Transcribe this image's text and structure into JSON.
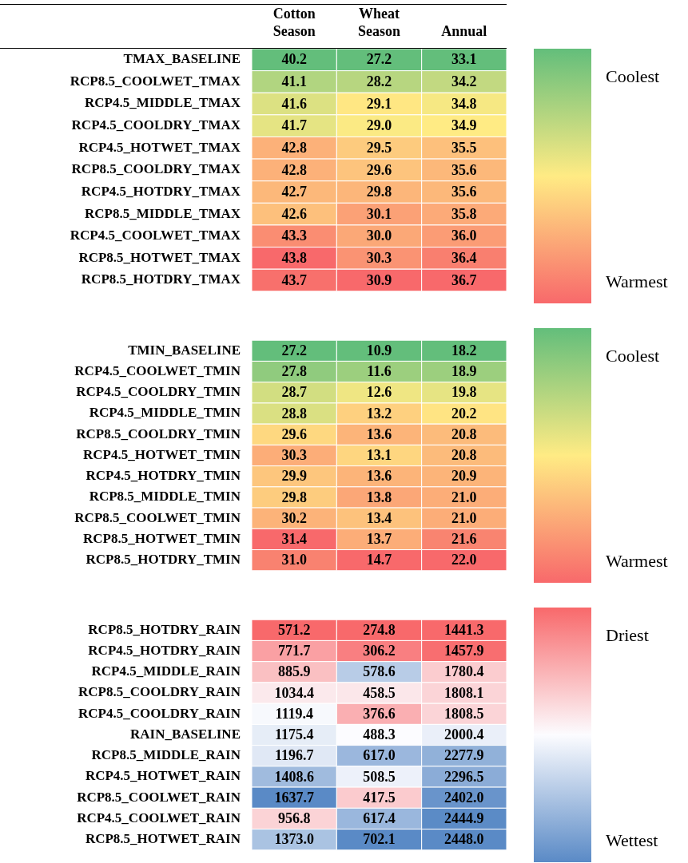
{
  "chart_data": [
    {
      "type": "heatmap",
      "categories": [
        "Cotton Season",
        "Wheat Season",
        "Annual"
      ],
      "y_categories": [
        "TMAX_BASELINE",
        "RCP8.5_COOLWET_TMAX",
        "RCP4.5_MIDDLE_TMAX",
        "RCP4.5_COOLDRY_TMAX",
        "RCP4.5_HOTWET_TMAX",
        "RCP8.5_COOLDRY_TMAX",
        "RCP4.5_HOTDRY_TMAX",
        "RCP8.5_MIDDLE_TMAX",
        "RCP4.5_COOLWET_TMAX",
        "RCP8.5_HOTWET_TMAX",
        "RCP8.5_HOTDRY_TMAX"
      ],
      "cells": [
        [
          40.2,
          27.2,
          33.1
        ],
        [
          41.1,
          28.2,
          34.2
        ],
        [
          41.6,
          29.1,
          34.8
        ],
        [
          41.7,
          29.0,
          34.9
        ],
        [
          42.8,
          29.5,
          35.5
        ],
        [
          42.8,
          29.6,
          35.6
        ],
        [
          42.7,
          29.8,
          35.6
        ],
        [
          42.6,
          30.1,
          35.8
        ],
        [
          43.3,
          30.0,
          36.0
        ],
        [
          43.8,
          30.3,
          36.4
        ],
        [
          43.7,
          30.9,
          36.7
        ]
      ],
      "cell_labels": [
        [
          "40.2",
          "27.2",
          "33.1"
        ],
        [
          "41.1",
          "28.2",
          "34.2"
        ],
        [
          "41.6",
          "29.1",
          "34.8"
        ],
        [
          "41.7",
          "29.0",
          "34.9"
        ],
        [
          "42.8",
          "29.5",
          "35.5"
        ],
        [
          "42.8",
          "29.6",
          "35.6"
        ],
        [
          "42.7",
          "29.8",
          "35.6"
        ],
        [
          "42.6",
          "30.1",
          "35.8"
        ],
        [
          "43.3",
          "30.0",
          "36.0"
        ],
        [
          "43.8",
          "30.3",
          "36.4"
        ],
        [
          "43.7",
          "30.9",
          "36.7"
        ]
      ],
      "colors": [
        "#63be7b",
        "#ffeb84",
        "#f8696b"
      ],
      "annotations": [
        "Coolest",
        "Warmest"
      ]
    },
    {
      "type": "heatmap",
      "categories": [
        null,
        null,
        null
      ],
      "tick_labels": "y",
      "y_categories": [
        "TMIN_BASELINE",
        "RCP4.5_COOLWET_TMIN",
        "RCP4.5_COOLDRY_TMIN",
        "RCP4.5_MIDDLE_TMIN",
        "RCP8.5_COOLDRY_TMIN",
        "RCP4.5_HOTWET_TMIN",
        "RCP4.5_HOTDRY_TMIN",
        "RCP8.5_MIDDLE_TMIN",
        "RCP8.5_COOLWET_TMIN",
        "RCP8.5_HOTWET_TMIN",
        "RCP8.5_HOTDRY_TMIN"
      ],
      "cells": [
        [
          27.2,
          10.9,
          18.2
        ],
        [
          27.8,
          11.6,
          18.9
        ],
        [
          28.7,
          12.6,
          19.8
        ],
        [
          28.8,
          13.2,
          20.2
        ],
        [
          29.6,
          13.6,
          20.8
        ],
        [
          30.3,
          13.1,
          20.8
        ],
        [
          29.9,
          13.6,
          20.9
        ],
        [
          29.8,
          13.8,
          21.0
        ],
        [
          30.2,
          13.4,
          21.0
        ],
        [
          31.4,
          13.7,
          21.6
        ],
        [
          31.0,
          14.7,
          22.0
        ]
      ],
      "cell_labels": [
        [
          "27.2",
          "10.9",
          "18.2"
        ],
        [
          "27.8",
          "11.6",
          "18.9"
        ],
        [
          "28.7",
          "12.6",
          "19.8"
        ],
        [
          "28.8",
          "13.2",
          "20.2"
        ],
        [
          "29.6",
          "13.6",
          "20.8"
        ],
        [
          "30.3",
          "13.1",
          "20.8"
        ],
        [
          "29.9",
          "13.6",
          "20.9"
        ],
        [
          "29.8",
          "13.8",
          "21.0"
        ],
        [
          "30.2",
          "13.4",
          "21.0"
        ],
        [
          "31.4",
          "13.7",
          "21.6"
        ],
        [
          "31.0",
          "14.7",
          "22.0"
        ]
      ],
      "colors": [
        "#63be7b",
        "#ffeb84",
        "#f8696b"
      ],
      "annotations": [
        "Coolest",
        "Warmest"
      ]
    },
    {
      "type": "heatmap",
      "categories": [
        null,
        null,
        null
      ],
      "tick_labels": "y",
      "y_categories": [
        "RCP8.5_HOTDRY_RAIN",
        "RCP4.5_HOTDRY_RAIN",
        "RCP4.5_MIDDLE_RAIN",
        "RCP8.5_COOLDRY_RAIN",
        "RCP4.5_COOLDRY_RAIN",
        "RAIN_BASELINE",
        "RCP8.5_MIDDLE_RAIN",
        "RCP4.5_HOTWET_RAIN",
        "RCP8.5_COOLWET_RAIN",
        "RCP4.5_COOLWET_RAIN",
        "RCP8.5_HOTWET_RAIN"
      ],
      "cells": [
        [
          571.2,
          274.8,
          1441.3
        ],
        [
          771.7,
          306.2,
          1457.9
        ],
        [
          885.9,
          578.6,
          1780.4
        ],
        [
          1034.4,
          458.5,
          1808.1
        ],
        [
          1119.4,
          376.6,
          1808.5
        ],
        [
          1175.4,
          488.3,
          2000.4
        ],
        [
          1196.7,
          617.0,
          2277.9
        ],
        [
          1408.6,
          508.5,
          2296.5
        ],
        [
          1637.7,
          417.5,
          2402.0
        ],
        [
          956.8,
          617.4,
          2444.9
        ],
        [
          1373.0,
          702.1,
          2448.0
        ]
      ],
      "cell_labels": [
        [
          "571.2",
          "274.8",
          "1441.3"
        ],
        [
          "771.7",
          "306.2",
          "1457.9"
        ],
        [
          "885.9",
          "578.6",
          "1780.4"
        ],
        [
          "1034.4",
          "458.5",
          "1808.1"
        ],
        [
          "1119.4",
          "376.6",
          "1808.5"
        ],
        [
          "1175.4",
          "488.3",
          "2000.4"
        ],
        [
          "1196.7",
          "617.0",
          "2277.9"
        ],
        [
          "1408.6",
          "508.5",
          "2296.5"
        ],
        [
          "1637.7",
          "417.5",
          "2402.0"
        ],
        [
          "956.8",
          "617.4",
          "2444.9"
        ],
        [
          "1373.0",
          "702.1",
          "2448.0"
        ]
      ],
      "colors": [
        "#f8696b",
        "#fcfcff",
        "#5a8ac6"
      ],
      "annotations": [
        "Driest",
        "Wettest"
      ]
    }
  ]
}
